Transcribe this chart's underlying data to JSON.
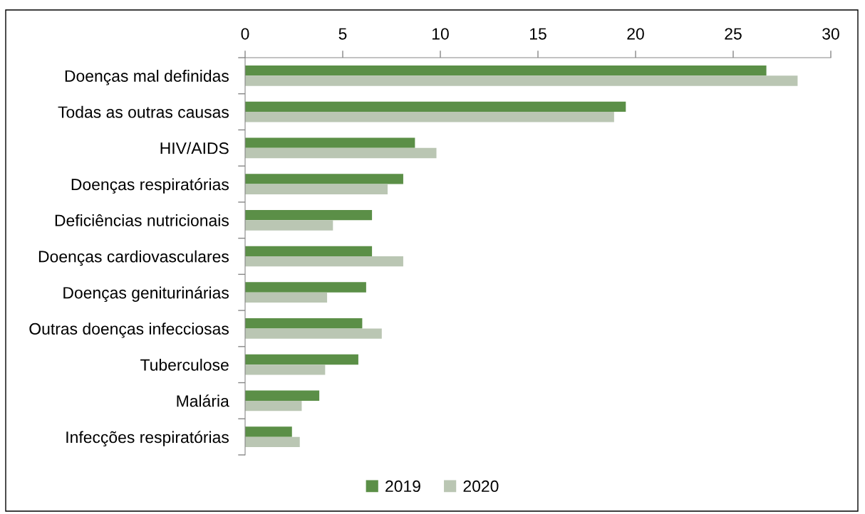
{
  "chart_data": {
    "type": "bar",
    "orientation": "horizontal",
    "categories": [
      "Doenças mal definidas",
      "Todas as outras causas",
      "HIV/AIDS",
      "Doenças respiratórias",
      "Deficiências nutricionais",
      "Doenças cardiovasculares",
      "Doenças geniturinárias",
      "Outras doenças infecciosas",
      "Tuberculose",
      "Malária",
      "Infecções respiratórias"
    ],
    "series": [
      {
        "name": "2019",
        "color": "#5b8f47",
        "values": [
          26.7,
          19.5,
          8.7,
          8.1,
          6.5,
          6.5,
          6.2,
          6.0,
          5.8,
          3.8,
          2.4
        ]
      },
      {
        "name": "2020",
        "color": "#bac6b3",
        "values": [
          28.3,
          18.9,
          9.8,
          7.3,
          4.5,
          8.1,
          4.2,
          7.0,
          4.1,
          2.9,
          2.8
        ]
      }
    ],
    "xlim": [
      0,
      30
    ],
    "xticks": [
      0,
      5,
      10,
      15,
      20,
      25,
      30
    ],
    "grid": false,
    "legend": "bottom"
  }
}
